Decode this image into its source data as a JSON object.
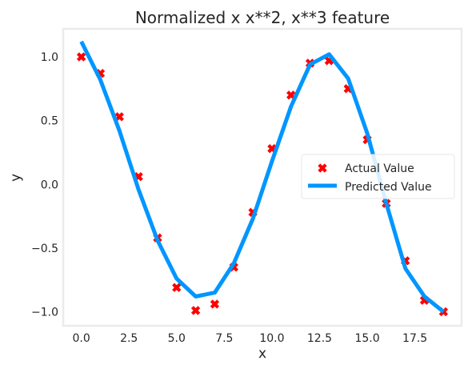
{
  "chart_data": {
    "type": "scatter",
    "title": "Normalized x x**2, x**3 feature",
    "xlabel": "x",
    "ylabel": "y",
    "xlim": [
      -0.95,
      19.95
    ],
    "ylim": [
      -1.11,
      1.22
    ],
    "xticks": [
      0.0,
      2.5,
      5.0,
      7.5,
      10.0,
      12.5,
      15.0,
      17.5
    ],
    "xtick_labels": [
      "0.0",
      "2.5",
      "5.0",
      "7.5",
      "10.0",
      "12.5",
      "15.0",
      "17.5"
    ],
    "yticks": [
      1.0,
      0.5,
      0.0,
      -0.5,
      -1.0
    ],
    "ytick_labels": [
      "1.0",
      "0.5",
      "0.0",
      "−0.5",
      "−1.0"
    ],
    "grid": false,
    "legend_position": "center-right",
    "series": [
      {
        "name": "Actual Value",
        "kind": "scatter",
        "marker": "X",
        "color": "#ff0000",
        "x": [
          0,
          1,
          2,
          3,
          4,
          5,
          6,
          7,
          8,
          9,
          10,
          11,
          12,
          13,
          14,
          15,
          16,
          17,
          18,
          19
        ],
        "y": [
          1.0,
          0.87,
          0.53,
          0.06,
          -0.42,
          -0.81,
          -0.99,
          -0.94,
          -0.65,
          -0.22,
          0.28,
          0.7,
          0.95,
          0.97,
          0.75,
          0.35,
          -0.15,
          -0.6,
          -0.91,
          -1.0
        ]
      },
      {
        "name": "Predicted Value",
        "kind": "line",
        "color": "#0096ff",
        "x": [
          0,
          1,
          2,
          3,
          4,
          5,
          6,
          7,
          8,
          9,
          10,
          11,
          12,
          13,
          14,
          15,
          16,
          17,
          18,
          19
        ],
        "y": [
          1.12,
          0.82,
          0.42,
          -0.04,
          -0.44,
          -0.74,
          -0.88,
          -0.85,
          -0.62,
          -0.27,
          0.18,
          0.61,
          0.94,
          1.02,
          0.83,
          0.4,
          -0.15,
          -0.66,
          -0.88,
          -1.0
        ]
      }
    ]
  }
}
